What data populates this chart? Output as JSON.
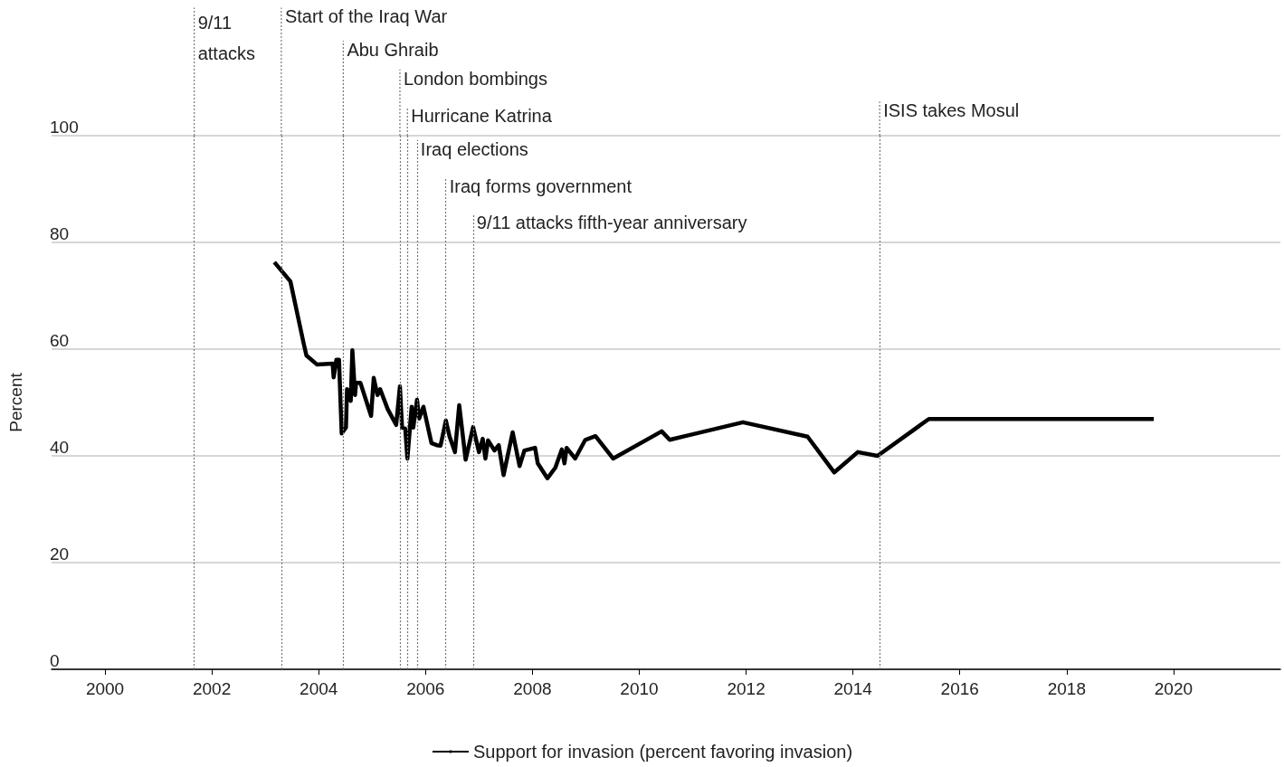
{
  "chart_data": {
    "type": "line",
    "ylabel": "Percent",
    "xlim": [
      1999,
      2022
    ],
    "xticks": [
      2000,
      2002,
      2004,
      2006,
      2008,
      2010,
      2012,
      2014,
      2016,
      2018,
      2020
    ],
    "ylim": [
      0,
      100
    ],
    "yticks": [
      0,
      20,
      40,
      60,
      80,
      100
    ],
    "grid": "y",
    "legend": "bottom",
    "series": [
      {
        "name": "Support for invasion (percent favoring invasion)",
        "color": "#000000",
        "x": [
          2003.17,
          2003.47,
          2003.72,
          2003.77,
          2003.97,
          2004.26,
          2004.28,
          2004.33,
          2004.38,
          2004.43,
          2004.51,
          2004.53,
          2004.6,
          2004.63,
          2004.68,
          2004.7,
          2004.78,
          2004.98,
          2005.03,
          2005.1,
          2005.15,
          2005.29,
          2005.45,
          2005.52,
          2005.56,
          2005.62,
          2005.66,
          2005.74,
          2005.77,
          2005.84,
          2005.88,
          2005.96,
          2006.11,
          2006.21,
          2006.28,
          2006.38,
          2006.45,
          2006.55,
          2006.63,
          2006.75,
          2006.89,
          2007.0,
          2007.07,
          2007.12,
          2007.17,
          2007.29,
          2007.37,
          2007.46,
          2007.63,
          2007.76,
          2007.85,
          2008.05,
          2008.1,
          2008.28,
          2008.43,
          2008.55,
          2008.6,
          2008.64,
          2008.8,
          2008.99,
          2009.18,
          2009.51,
          2010.42,
          2010.57,
          2011.94,
          2013.15,
          2013.65,
          2014.09,
          2014.46,
          2015.42,
          2019.63
        ],
        "values": [
          76.3,
          72.7,
          61,
          58.8,
          57.1,
          57.3,
          54.7,
          58,
          58,
          44.2,
          45.3,
          52.5,
          50.3,
          59.8,
          51.4,
          53.7,
          53.7,
          47.5,
          54.6,
          51.4,
          52.5,
          48.8,
          45.8,
          53,
          45.3,
          45.1,
          39.5,
          49.2,
          45.3,
          50.5,
          47,
          49.2,
          42.4,
          42,
          41.9,
          46.6,
          43.6,
          40.7,
          49.5,
          39.3,
          45.4,
          40.7,
          43.2,
          39.5,
          42.9,
          41,
          42,
          36.4,
          44.4,
          38.1,
          41,
          41.5,
          38.6,
          35.8,
          37.8,
          41.2,
          38.6,
          41.5,
          39.5,
          43,
          43.7,
          39.5,
          44.6,
          43,
          46.3,
          43.6,
          36.9,
          40.7,
          40,
          46.9,
          46.9
        ]
      }
    ],
    "ref_lines": [
      {
        "axis": "x",
        "value": 2001.67,
        "label": "9/11 attacks"
      },
      {
        "axis": "x",
        "value": 2003.3,
        "label": "Start of the Iraq War"
      },
      {
        "axis": "x",
        "value": 2004.46,
        "label": "Abu Ghraib"
      },
      {
        "axis": "x",
        "value": 2005.52,
        "label": "London bombings"
      },
      {
        "axis": "x",
        "value": 2005.66,
        "label": "Hurricane Katrina"
      },
      {
        "axis": "x",
        "value": 2005.84,
        "label": "Iraq elections"
      },
      {
        "axis": "x",
        "value": 2006.38,
        "label": "Iraq forms government"
      },
      {
        "axis": "x",
        "value": 2006.89,
        "label": "9/11 attacks fifth-year anniversary"
      },
      {
        "axis": "x",
        "value": 2014.5,
        "label": "ISIS takes Mosul"
      }
    ]
  }
}
